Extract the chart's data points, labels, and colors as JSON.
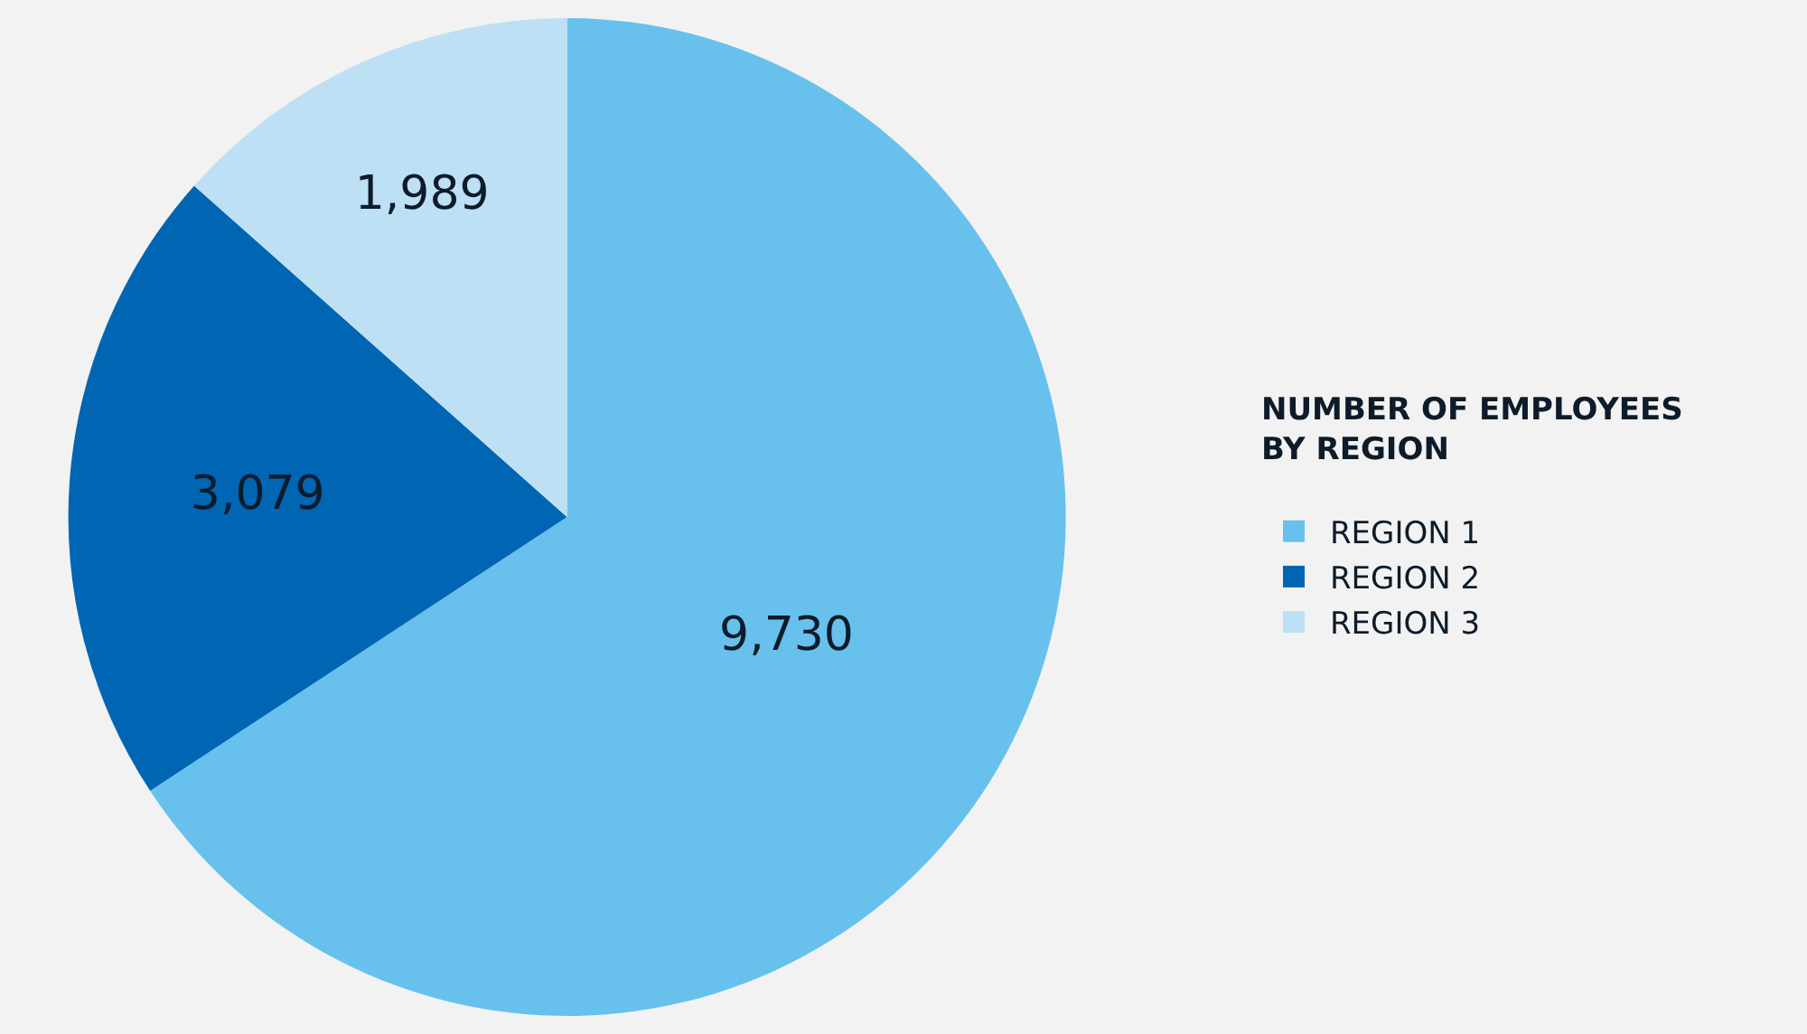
{
  "chart_data": {
    "type": "pie",
    "categories": [
      "REGION 1",
      "REGION 2",
      "REGION 3"
    ],
    "values": [
      9730,
      3079,
      1989
    ],
    "value_labels": [
      "9,730",
      "3,079",
      "1,989"
    ],
    "colors": [
      "#67c1ec",
      "#0065b3",
      "#bee0f4"
    ],
    "legend_title": "NUMBER OF EMPLOYEES BY REGION",
    "legend": "right"
  }
}
